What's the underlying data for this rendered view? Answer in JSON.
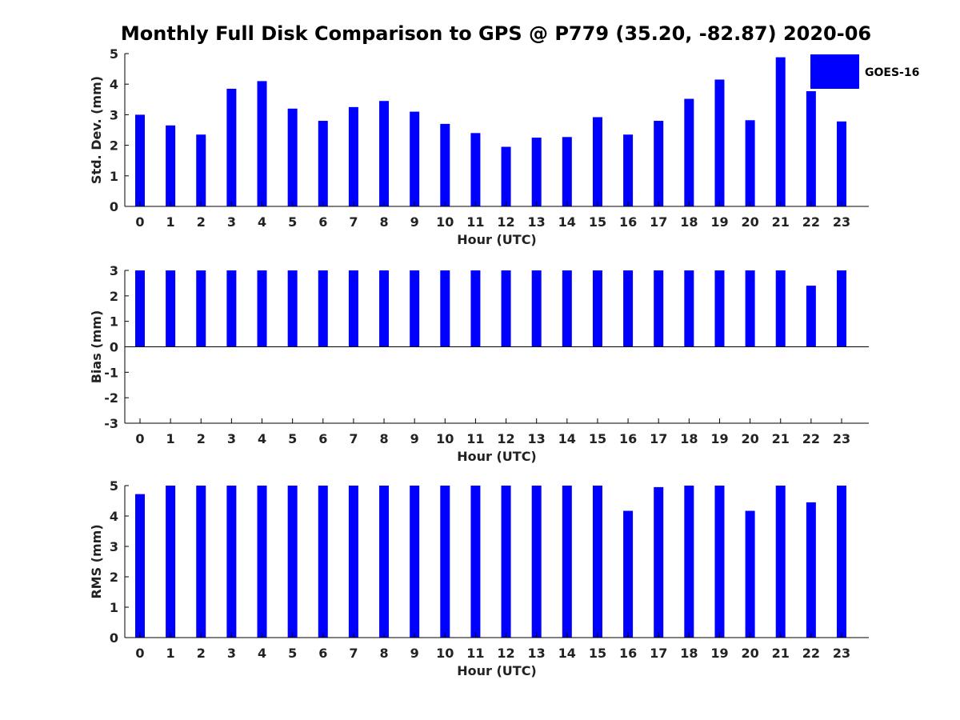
{
  "title": "Monthly Full Disk Comparison to GPS @ P779 (35.20, -82.87) 2020-06",
  "legend": {
    "label": "GOES-16",
    "color": "#0000ff",
    "placement": "top-right"
  },
  "chart_data": [
    {
      "type": "bar",
      "categories": [
        "0",
        "1",
        "2",
        "3",
        "4",
        "5",
        "6",
        "7",
        "8",
        "9",
        "10",
        "11",
        "12",
        "13",
        "14",
        "15",
        "16",
        "17",
        "18",
        "19",
        "20",
        "21",
        "22",
        "23"
      ],
      "series": [
        {
          "name": "GOES-16",
          "color": "#0000ff",
          "values": [
            3.0,
            2.65,
            2.35,
            3.85,
            4.1,
            3.2,
            2.8,
            3.25,
            3.45,
            3.1,
            2.7,
            2.4,
            1.95,
            2.25,
            2.27,
            2.92,
            2.35,
            2.8,
            3.52,
            4.15,
            2.82,
            4.88,
            3.77,
            2.78
          ]
        }
      ],
      "xlabel": "Hour (UTC)",
      "ylabel": "Std. Dev. (mm)",
      "ylim": [
        0,
        5
      ],
      "yticks": [
        "0",
        "1",
        "2",
        "3",
        "4",
        "5"
      ],
      "grid": false
    },
    {
      "type": "bar",
      "categories": [
        "0",
        "1",
        "2",
        "3",
        "4",
        "5",
        "6",
        "7",
        "8",
        "9",
        "10",
        "11",
        "12",
        "13",
        "14",
        "15",
        "16",
        "17",
        "18",
        "19",
        "20",
        "21",
        "22",
        "23"
      ],
      "series": [
        {
          "name": "GOES-16",
          "color": "#0000ff",
          "values": [
            3,
            3,
            3,
            3,
            3,
            3,
            3,
            3,
            3,
            3,
            3,
            3,
            3,
            3,
            3,
            3,
            3,
            3,
            3,
            3,
            3,
            3,
            2.4,
            3
          ]
        }
      ],
      "xlabel": "Hour (UTC)",
      "ylabel": "Bias (mm)",
      "ylim": [
        -3,
        3
      ],
      "yticks": [
        "-3",
        "-2",
        "-1",
        "0",
        "1",
        "2",
        "3"
      ],
      "grid": false
    },
    {
      "type": "bar",
      "categories": [
        "0",
        "1",
        "2",
        "3",
        "4",
        "5",
        "6",
        "7",
        "8",
        "9",
        "10",
        "11",
        "12",
        "13",
        "14",
        "15",
        "16",
        "17",
        "18",
        "19",
        "20",
        "21",
        "22",
        "23"
      ],
      "series": [
        {
          "name": "GOES-16",
          "color": "#0000ff",
          "values": [
            4.72,
            5,
            5,
            5,
            5,
            5,
            5,
            5,
            5,
            5,
            5,
            5,
            5,
            5,
            5,
            5,
            4.17,
            4.95,
            5,
            5,
            4.17,
            5,
            4.45,
            5
          ]
        }
      ],
      "xlabel": "Hour (UTC)",
      "ylabel": "RMS (mm)",
      "ylim": [
        0,
        5
      ],
      "yticks": [
        "0",
        "1",
        "2",
        "3",
        "4",
        "5"
      ],
      "grid": false
    }
  ]
}
